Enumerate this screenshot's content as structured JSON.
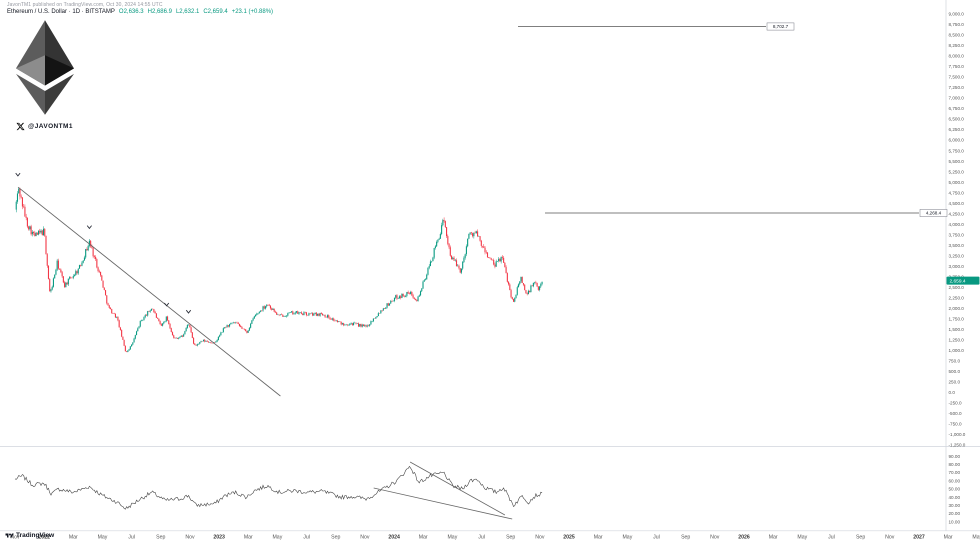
{
  "header": {
    "published_line": "JavonTM1 published on TradingView.com, Oct 30, 2024 14:55 UTC",
    "symbol_text": "Ethereum / U.S. Dollar · 1D · BITSTAMP",
    "ohlc": {
      "o": "O2,636.3",
      "h": "H2,686.9",
      "l": "L2,632.1",
      "c": "C2,659.4",
      "change": "+23.1 (+0.88%)"
    },
    "watermark_handle": "@JAVONTM1"
  },
  "footer": {
    "logo_text": "TradingView"
  },
  "chart_data": {
    "type": "candlestick",
    "title": "Ethereum / U.S. Dollar",
    "interval": "1D",
    "exchange": "BITSTAMP",
    "series_start": "Nov 2021",
    "up_color": "#089981",
    "down_color": "#f23645",
    "line_color": "#666666",
    "indicator_color": "#444444",
    "price_axis": {
      "max": 9000,
      "min": -1250,
      "step": 250
    },
    "indicator_axis": {
      "max": 90,
      "min": 10,
      "step": 10
    },
    "time_axis_labels": [
      "Nov",
      "2022",
      "Mar",
      "May",
      "Jul",
      "Sep",
      "Nov",
      "2023",
      "Mar",
      "May",
      "Jul",
      "Sep",
      "Nov",
      "2024",
      "Mar",
      "May",
      "Jul",
      "Sep",
      "Nov",
      "2025",
      "Mar",
      "May",
      "Jul",
      "Sep",
      "Nov",
      "2026",
      "Mar",
      "May",
      "Jul",
      "Sep",
      "Nov",
      "2027",
      "Mar",
      "May"
    ],
    "current_price": 2659.4,
    "current_price_label": "2,659.4",
    "levels": [
      {
        "price": 8702.7,
        "label": "8,702.7"
      },
      {
        "price": 4268.4,
        "label": "4,268.4"
      }
    ],
    "trendline": {
      "x1_month": 0.21,
      "price1": 4880,
      "x2_month": 18.2,
      "price2": -84
    },
    "markers": [
      [
        0.2,
        5150
      ],
      [
        5.1,
        3900
      ],
      [
        10.4,
        2060
      ],
      [
        11.9,
        1890
      ]
    ],
    "price_anchors": [
      [
        0,
        4350
      ],
      [
        0.25,
        4850
      ],
      [
        0.8,
        4050
      ],
      [
        1.3,
        3720
      ],
      [
        2.0,
        3830
      ],
      [
        2.4,
        2320
      ],
      [
        2.9,
        3080
      ],
      [
        3.4,
        2550
      ],
      [
        4.4,
        2950
      ],
      [
        5.1,
        3580
      ],
      [
        5.9,
        2730
      ],
      [
        6.4,
        2020
      ],
      [
        7.0,
        1770
      ],
      [
        7.6,
        950
      ],
      [
        8.0,
        1120
      ],
      [
        8.6,
        1680
      ],
      [
        9.4,
        2020
      ],
      [
        10.0,
        1560
      ],
      [
        10.4,
        1790
      ],
      [
        10.9,
        1280
      ],
      [
        11.5,
        1340
      ],
      [
        11.9,
        1650
      ],
      [
        12.3,
        1100
      ],
      [
        12.9,
        1230
      ],
      [
        13.7,
        1170
      ],
      [
        14.4,
        1560
      ],
      [
        15.1,
        1660
      ],
      [
        15.9,
        1430
      ],
      [
        16.4,
        1800
      ],
      [
        17.3,
        2110
      ],
      [
        18.1,
        1810
      ],
      [
        19.1,
        1900
      ],
      [
        20.1,
        1860
      ],
      [
        21.1,
        1865
      ],
      [
        22.4,
        1630
      ],
      [
        23.1,
        1640
      ],
      [
        24.1,
        1560
      ],
      [
        25.1,
        1950
      ],
      [
        26.1,
        2260
      ],
      [
        27.1,
        2360
      ],
      [
        27.6,
        2210
      ],
      [
        28.4,
        2980
      ],
      [
        29.4,
        4070
      ],
      [
        29.9,
        3230
      ],
      [
        30.6,
        2880
      ],
      [
        31.1,
        3740
      ],
      [
        31.6,
        3810
      ],
      [
        32.1,
        3420
      ],
      [
        32.9,
        3010
      ],
      [
        33.4,
        3230
      ],
      [
        34.15,
        2130
      ],
      [
        34.7,
        2720
      ],
      [
        35.1,
        2310
      ],
      [
        35.6,
        2630
      ],
      [
        35.9,
        2430
      ],
      [
        36.15,
        2659
      ]
    ],
    "indicator_anchors": [
      [
        0,
        62
      ],
      [
        0.5,
        66
      ],
      [
        1.2,
        55
      ],
      [
        2.0,
        57
      ],
      [
        2.5,
        44
      ],
      [
        3.0,
        50
      ],
      [
        4.0,
        46
      ],
      [
        5.1,
        53
      ],
      [
        6.0,
        42
      ],
      [
        7.0,
        34
      ],
      [
        7.6,
        26
      ],
      [
        8.6,
        38
      ],
      [
        9.4,
        46
      ],
      [
        10.3,
        36
      ],
      [
        11.3,
        38
      ],
      [
        11.9,
        42
      ],
      [
        12.4,
        30
      ],
      [
        13.7,
        32
      ],
      [
        14.4,
        42
      ],
      [
        15.1,
        46
      ],
      [
        15.9,
        40
      ],
      [
        16.4,
        48
      ],
      [
        17.3,
        54
      ],
      [
        18.1,
        46
      ],
      [
        19.1,
        48
      ],
      [
        20.1,
        46
      ],
      [
        21.1,
        47
      ],
      [
        22.4,
        40
      ],
      [
        23.1,
        41
      ],
      [
        24.1,
        38
      ],
      [
        25.1,
        48
      ],
      [
        26.2,
        60
      ],
      [
        27.1,
        78
      ],
      [
        27.7,
        58
      ],
      [
        28.5,
        66
      ],
      [
        29.4,
        70
      ],
      [
        30.0,
        54
      ],
      [
        30.7,
        50
      ],
      [
        31.2,
        60
      ],
      [
        31.7,
        62
      ],
      [
        32.2,
        52
      ],
      [
        33.0,
        46
      ],
      [
        33.5,
        52
      ],
      [
        34.2,
        30
      ],
      [
        34.8,
        42
      ],
      [
        35.2,
        34
      ],
      [
        35.7,
        42
      ],
      [
        36.15,
        44
      ]
    ],
    "indicator_trendlines": [
      {
        "x1_month": 27.1,
        "v1": 82.9,
        "x2_month": 33.6,
        "v2": 18.3
      },
      {
        "x1_month": 24.6,
        "v1": 51.2,
        "x2_month": 34.1,
        "v2": 13.4
      }
    ]
  }
}
